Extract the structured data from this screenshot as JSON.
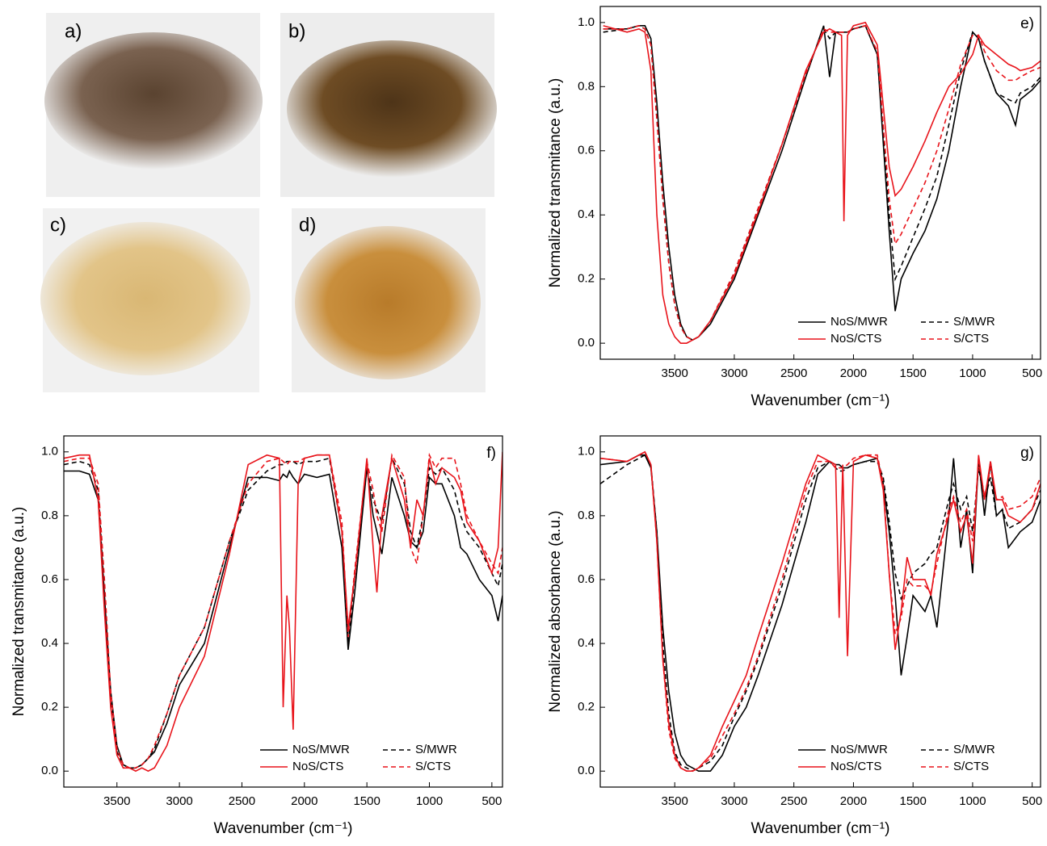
{
  "photos": [
    {
      "label": "a)"
    },
    {
      "label": "b)"
    },
    {
      "label": "c)"
    },
    {
      "label": "d)"
    }
  ],
  "chart_data": [
    {
      "type": "line",
      "annotation": "e)",
      "y_label": "Normalized transmitance (a.u.)",
      "x_label": "Wavenumber (cm⁻¹)",
      "xlim": [
        4125,
        430
      ],
      "ylim": [
        -0.05,
        1.05
      ],
      "xticks": [
        3500,
        3000,
        2500,
        2000,
        1500,
        1000,
        500
      ],
      "yticks": [
        {
          "value": 0,
          "label": "0.0"
        },
        0.2,
        0.4,
        0.6,
        0.8,
        {
          "value": 1,
          "label": "1.0"
        }
      ],
      "legend": "lower right",
      "x": [
        4100,
        3900,
        3800,
        3750,
        3700,
        3650,
        3600,
        3550,
        3500,
        3450,
        3400,
        3350,
        3300,
        3200,
        3000,
        2800,
        2600,
        2400,
        2250,
        2200,
        2150,
        2100,
        2080,
        2050,
        2000,
        1900,
        1800,
        1700,
        1650,
        1600,
        1500,
        1400,
        1300,
        1200,
        1100,
        1000,
        950,
        900,
        800,
        700,
        640,
        600,
        500,
        430
      ],
      "series": [
        {
          "name": "NoS/MWR",
          "color": "#000000",
          "style": "solid",
          "values": [
            0.98,
            0.98,
            0.99,
            0.99,
            0.95,
            0.75,
            0.5,
            0.3,
            0.15,
            0.06,
            0.02,
            0.01,
            0.02,
            0.06,
            0.2,
            0.4,
            0.6,
            0.83,
            0.99,
            0.83,
            0.97,
            0.97,
            0.97,
            0.97,
            0.98,
            0.99,
            0.9,
            0.35,
            0.1,
            0.2,
            0.28,
            0.35,
            0.45,
            0.6,
            0.8,
            0.97,
            0.95,
            0.88,
            0.78,
            0.74,
            0.68,
            0.76,
            0.79,
            0.82
          ]
        },
        {
          "name": "S/MWR",
          "color": "#000000",
          "style": "dashed",
          "values": [
            0.97,
            0.98,
            0.99,
            0.98,
            0.93,
            0.7,
            0.45,
            0.25,
            0.12,
            0.05,
            0.02,
            0.01,
            0.02,
            0.07,
            0.22,
            0.42,
            0.62,
            0.84,
            0.98,
            0.95,
            0.97,
            0.97,
            0.97,
            0.97,
            0.98,
            0.99,
            0.9,
            0.4,
            0.2,
            0.24,
            0.33,
            0.42,
            0.52,
            0.68,
            0.85,
            0.97,
            0.95,
            0.88,
            0.78,
            0.76,
            0.75,
            0.78,
            0.8,
            0.83
          ]
        },
        {
          "name": "NoS/CTS",
          "color": "#e8141b",
          "style": "solid",
          "values": [
            0.99,
            0.97,
            0.98,
            0.97,
            0.85,
            0.4,
            0.15,
            0.06,
            0.02,
            0,
            0,
            0.01,
            0.02,
            0.07,
            0.21,
            0.41,
            0.62,
            0.85,
            0.97,
            0.98,
            0.97,
            0.96,
            0.38,
            0.96,
            0.99,
            1,
            0.93,
            0.55,
            0.46,
            0.48,
            0.55,
            0.63,
            0.72,
            0.8,
            0.84,
            0.9,
            0.96,
            0.93,
            0.9,
            0.87,
            0.86,
            0.85,
            0.86,
            0.88
          ]
        },
        {
          "name": "S/CTS",
          "color": "#e8141b",
          "style": "dashed",
          "values": [
            0.98,
            0.98,
            0.99,
            0.98,
            0.93,
            0.7,
            0.45,
            0.25,
            0.12,
            0.05,
            0.02,
            0.01,
            0.02,
            0.07,
            0.22,
            0.42,
            0.62,
            0.84,
            0.98,
            0.97,
            0.97,
            0.97,
            0.97,
            0.97,
            0.98,
            0.99,
            0.91,
            0.45,
            0.31,
            0.34,
            0.42,
            0.5,
            0.6,
            0.73,
            0.87,
            0.96,
            0.96,
            0.91,
            0.85,
            0.82,
            0.82,
            0.83,
            0.85,
            0.86
          ]
        }
      ]
    },
    {
      "type": "line",
      "annotation": "f)",
      "y_label": "Normalized transmitance (a.u.)",
      "x_label": "Wavenumber (cm⁻¹)",
      "xlim": [
        3925,
        415
      ],
      "ylim": [
        -0.05,
        1.05
      ],
      "xticks": [
        3500,
        3000,
        2500,
        2000,
        1500,
        1000,
        500
      ],
      "yticks": [
        {
          "value": 0,
          "label": "0.0"
        },
        0.2,
        0.4,
        0.6,
        0.8,
        {
          "value": 1,
          "label": "1.0"
        }
      ],
      "legend": "lower right",
      "x": [
        3925,
        3800,
        3720,
        3650,
        3600,
        3550,
        3500,
        3450,
        3400,
        3350,
        3300,
        3250,
        3200,
        3100,
        3000,
        2800,
        2600,
        2450,
        2300,
        2200,
        2170,
        2140,
        2120,
        2090,
        2050,
        2000,
        1900,
        1800,
        1700,
        1650,
        1600,
        1500,
        1450,
        1420,
        1380,
        1300,
        1200,
        1150,
        1100,
        1050,
        1000,
        950,
        900,
        800,
        750,
        700,
        600,
        500,
        450,
        415
      ],
      "series": [
        {
          "name": "NoS/MWR",
          "color": "#000000",
          "style": "solid",
          "values": [
            0.94,
            0.94,
            0.93,
            0.85,
            0.55,
            0.25,
            0.08,
            0.02,
            0.01,
            0.01,
            0.02,
            0.04,
            0.06,
            0.15,
            0.27,
            0.4,
            0.7,
            0.92,
            0.92,
            0.91,
            0.93,
            0.92,
            0.94,
            0.92,
            0.9,
            0.93,
            0.92,
            0.93,
            0.7,
            0.38,
            0.55,
            0.95,
            0.8,
            0.75,
            0.68,
            0.92,
            0.8,
            0.72,
            0.7,
            0.75,
            0.92,
            0.9,
            0.9,
            0.8,
            0.7,
            0.68,
            0.6,
            0.55,
            0.47,
            0.55
          ]
        },
        {
          "name": "S/MWR",
          "color": "#000000",
          "style": "dashed",
          "values": [
            0.96,
            0.97,
            0.96,
            0.88,
            0.55,
            0.22,
            0.06,
            0.02,
            0.01,
            0.01,
            0.02,
            0.04,
            0.07,
            0.18,
            0.3,
            0.45,
            0.72,
            0.88,
            0.94,
            0.96,
            0.96,
            0.97,
            0.97,
            0.97,
            0.96,
            0.97,
            0.97,
            0.98,
            0.75,
            0.4,
            0.6,
            0.95,
            0.85,
            0.82,
            0.78,
            0.98,
            0.9,
            0.75,
            0.7,
            0.8,
            0.95,
            0.93,
            0.95,
            0.88,
            0.8,
            0.75,
            0.7,
            0.62,
            0.58,
            0.65
          ]
        },
        {
          "name": "NoS/CTS",
          "color": "#e8141b",
          "style": "solid",
          "values": [
            0.98,
            0.99,
            0.99,
            0.85,
            0.5,
            0.2,
            0.05,
            0.01,
            0.01,
            0,
            0.01,
            0,
            0.01,
            0.08,
            0.2,
            0.36,
            0.68,
            0.96,
            0.99,
            0.98,
            0.2,
            0.55,
            0.45,
            0.13,
            0.9,
            0.98,
            0.99,
            0.99,
            0.75,
            0.45,
            0.6,
            0.98,
            0.7,
            0.56,
            0.8,
            0.98,
            0.85,
            0.7,
            0.85,
            0.8,
            0.98,
            0.9,
            0.95,
            0.92,
            0.88,
            0.78,
            0.72,
            0.62,
            0.7,
            1
          ]
        },
        {
          "name": "S/CTS",
          "color": "#e8141b",
          "style": "dashed",
          "values": [
            0.97,
            0.98,
            0.98,
            0.9,
            0.6,
            0.25,
            0.07,
            0.02,
            0.01,
            0.01,
            0.02,
            0.04,
            0.08,
            0.18,
            0.3,
            0.45,
            0.72,
            0.9,
            0.97,
            0.98,
            0.97,
            0.96,
            0.97,
            0.97,
            0.97,
            0.98,
            0.99,
            0.99,
            0.78,
            0.42,
            0.62,
            0.97,
            0.88,
            0.8,
            0.75,
            0.99,
            0.92,
            0.7,
            0.65,
            0.8,
            0.99,
            0.95,
            0.98,
            0.98,
            0.9,
            0.8,
            0.72,
            0.65,
            0.62,
            0.7
          ]
        }
      ]
    },
    {
      "type": "line",
      "annotation": "g)",
      "y_label": "Normalized absorbance (a.u.)",
      "x_label": "Wavenumber (cm⁻¹)",
      "xlim": [
        4125,
        430
      ],
      "ylim": [
        -0.05,
        1.05
      ],
      "xticks": [
        3500,
        3000,
        2500,
        2000,
        1500,
        1000,
        500
      ],
      "yticks": [
        {
          "value": 0,
          "label": "0.0"
        },
        0.2,
        0.4,
        0.6,
        0.8,
        {
          "value": 1,
          "label": "1.0"
        }
      ],
      "legend": "lower right",
      "x": [
        4125,
        3900,
        3800,
        3750,
        3700,
        3650,
        3600,
        3550,
        3500,
        3450,
        3400,
        3350,
        3300,
        3200,
        3100,
        3000,
        2900,
        2800,
        2600,
        2400,
        2300,
        2200,
        2150,
        2120,
        2090,
        2050,
        2000,
        1900,
        1800,
        1750,
        1700,
        1650,
        1600,
        1550,
        1500,
        1400,
        1350,
        1300,
        1200,
        1160,
        1100,
        1050,
        1000,
        950,
        900,
        850,
        800,
        750,
        700,
        600,
        500,
        430
      ],
      "series": [
        {
          "name": "NoS/MWR",
          "color": "#000000",
          "style": "solid",
          "values": [
            0.96,
            0.97,
            0.99,
            0.99,
            0.95,
            0.75,
            0.45,
            0.25,
            0.12,
            0.05,
            0.02,
            0.01,
            0,
            0,
            0.05,
            0.14,
            0.2,
            0.3,
            0.52,
            0.78,
            0.93,
            0.97,
            0.96,
            0.96,
            0.95,
            0.95,
            0.96,
            0.97,
            0.98,
            0.9,
            0.75,
            0.55,
            0.3,
            0.42,
            0.55,
            0.5,
            0.55,
            0.45,
            0.8,
            0.98,
            0.7,
            0.82,
            0.62,
            0.98,
            0.8,
            0.97,
            0.8,
            0.82,
            0.7,
            0.75,
            0.78,
            0.85
          ]
        },
        {
          "name": "S/MWR",
          "color": "#000000",
          "style": "dashed",
          "values": [
            0.9,
            0.96,
            0.98,
            0.99,
            0.96,
            0.75,
            0.4,
            0.18,
            0.06,
            0.02,
            0.01,
            0,
            0.01,
            0.03,
            0.08,
            0.17,
            0.25,
            0.35,
            0.58,
            0.85,
            0.95,
            0.97,
            0.95,
            0.94,
            0.94,
            0.95,
            0.96,
            0.97,
            0.97,
            0.92,
            0.78,
            0.62,
            0.54,
            0.58,
            0.62,
            0.65,
            0.68,
            0.7,
            0.85,
            0.9,
            0.82,
            0.86,
            0.75,
            0.95,
            0.85,
            0.92,
            0.8,
            0.82,
            0.76,
            0.78,
            0.82,
            0.88
          ]
        },
        {
          "name": "NoS/CTS",
          "color": "#e8141b",
          "style": "solid",
          "values": [
            0.98,
            0.97,
            0.99,
            1,
            0.96,
            0.72,
            0.35,
            0.15,
            0.05,
            0.01,
            0,
            0,
            0.01,
            0.05,
            0.14,
            0.22,
            0.3,
            0.42,
            0.65,
            0.9,
            0.99,
            0.97,
            0.96,
            0.48,
            0.96,
            0.36,
            0.97,
            0.99,
            0.98,
            0.88,
            0.62,
            0.38,
            0.5,
            0.67,
            0.6,
            0.6,
            0.55,
            0.68,
            0.8,
            0.85,
            0.75,
            0.8,
            0.65,
            0.99,
            0.85,
            0.97,
            0.85,
            0.85,
            0.8,
            0.78,
            0.82,
            0.9
          ]
        },
        {
          "name": "S/CTS",
          "color": "#e8141b",
          "style": "dashed",
          "values": [
            0.98,
            0.97,
            0.99,
            1,
            0.96,
            0.72,
            0.35,
            0.13,
            0.04,
            0.01,
            0,
            0,
            0.01,
            0.04,
            0.11,
            0.18,
            0.26,
            0.36,
            0.6,
            0.88,
            0.97,
            0.97,
            0.95,
            0.95,
            0.95,
            0.96,
            0.98,
            0.99,
            0.99,
            0.9,
            0.62,
            0.43,
            0.48,
            0.6,
            0.58,
            0.58,
            0.56,
            0.65,
            0.82,
            0.86,
            0.78,
            0.82,
            0.72,
            0.97,
            0.86,
            0.95,
            0.85,
            0.86,
            0.82,
            0.83,
            0.86,
            0.92
          ]
        }
      ]
    }
  ]
}
